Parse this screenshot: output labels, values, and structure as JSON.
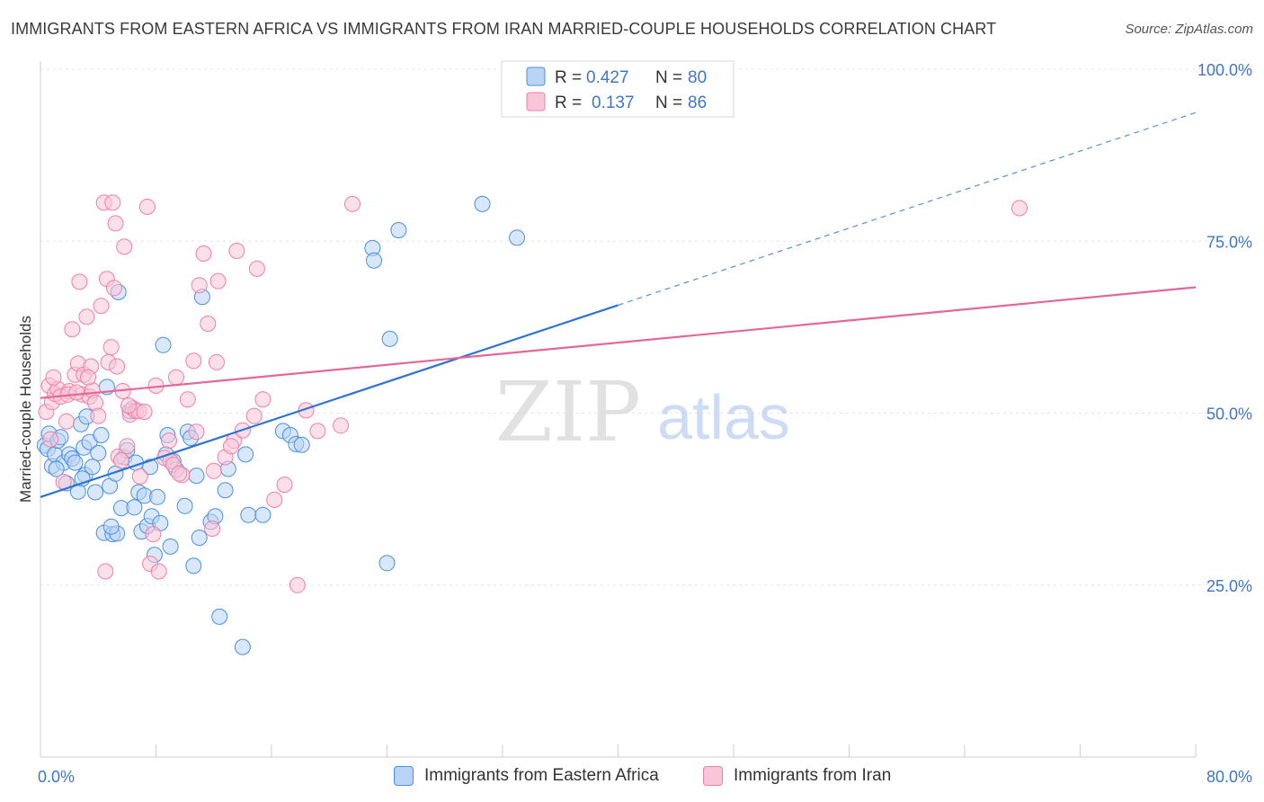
{
  "title": "IMMIGRANTS FROM EASTERN AFRICA VS IMMIGRANTS FROM IRAN MARRIED-COUPLE HOUSEHOLDS CORRELATION CHART",
  "source": "Source: ZipAtlas.com",
  "watermark": {
    "zip": "ZIP",
    "atlas": "atlas"
  },
  "colors": {
    "blue": "#4a8fe0",
    "blue_fill": "#b9d3f5",
    "blue_line": "#2f73d2",
    "pink": "#f07fa6",
    "pink_fill": "#f9c6d7",
    "pink_line": "#e2679a",
    "axis_label": "#3f76c9",
    "grid": "#e4e4e4"
  },
  "legend": {
    "series": [
      {
        "r_label": "R =",
        "r_value": "0.427",
        "n_label": "N =",
        "n_value": "80"
      },
      {
        "r_label": "R =",
        "r_value": "0.137",
        "n_label": "N =",
        "n_value": "86"
      }
    ]
  },
  "chart_data": {
    "type": "scatter",
    "title": "IMMIGRANTS FROM EASTERN AFRICA VS IMMIGRANTS FROM IRAN MARRIED-COUPLE HOUSEHOLDS CORRELATION CHART",
    "xlabel": "",
    "ylabel": "Married-couple Households",
    "xlim": [
      0,
      80
    ],
    "ylim": [
      0,
      102
    ],
    "x_ticks": [
      "0.0%",
      "80.0%"
    ],
    "y_ticks": [
      {
        "value": 25,
        "label": "25.0%"
      },
      {
        "value": 50,
        "label": "50.0%"
      },
      {
        "value": 75,
        "label": "75.0%"
      },
      {
        "value": 100,
        "label": "100.0%"
      }
    ],
    "legend_placement": "top-center",
    "series": [
      {
        "name": "Immigrants from Eastern Africa",
        "color": "#4a8fe0",
        "trend": {
          "x0": 0,
          "y0": 37.8,
          "x1": 40,
          "y1": 65.7,
          "dashed_to_x": 80,
          "dashed_to_y": 93.7
        },
        "points": [
          [
            0.3,
            45.3
          ],
          [
            0.5,
            44.8
          ],
          [
            0.6,
            47
          ],
          [
            0.8,
            42.3
          ],
          [
            1,
            44
          ],
          [
            1.2,
            46
          ],
          [
            1.4,
            46.5
          ],
          [
            1.6,
            42.8
          ],
          [
            1.8,
            39.8
          ],
          [
            2,
            44
          ],
          [
            2.2,
            43.4
          ],
          [
            2.4,
            42.8
          ],
          [
            2.6,
            38.6
          ],
          [
            2.8,
            48.4
          ],
          [
            3,
            45
          ],
          [
            3.1,
            41
          ],
          [
            3.2,
            49.5
          ],
          [
            3.4,
            45.8
          ],
          [
            3.6,
            42.2
          ],
          [
            3.8,
            38.5
          ],
          [
            4,
            44.2
          ],
          [
            4.2,
            46.8
          ],
          [
            4.4,
            32.6
          ],
          [
            4.6,
            53.8
          ],
          [
            4.8,
            39.4
          ],
          [
            5,
            32.4
          ],
          [
            5.2,
            41.2
          ],
          [
            5.3,
            32.5
          ],
          [
            5.4,
            67.6
          ],
          [
            5.6,
            36.2
          ],
          [
            5.8,
            43.6
          ],
          [
            6,
            44.6
          ],
          [
            6.2,
            50.3
          ],
          [
            6.5,
            36.3
          ],
          [
            6.8,
            38.5
          ],
          [
            7,
            32.8
          ],
          [
            7.2,
            38
          ],
          [
            7.4,
            33.6
          ],
          [
            7.6,
            42.2
          ],
          [
            7.7,
            35
          ],
          [
            7.9,
            29.4
          ],
          [
            8.1,
            37.8
          ],
          [
            8.3,
            34
          ],
          [
            8.5,
            59.9
          ],
          [
            8.7,
            44
          ],
          [
            8.8,
            46.8
          ],
          [
            9,
            30.6
          ],
          [
            9.2,
            43
          ],
          [
            9.4,
            41.8
          ],
          [
            10,
            36.5
          ],
          [
            10.2,
            47.3
          ],
          [
            10.4,
            46.4
          ],
          [
            10.6,
            27.8
          ],
          [
            10.8,
            40.9
          ],
          [
            11,
            31.9
          ],
          [
            11.2,
            66.9
          ],
          [
            11.8,
            34.2
          ],
          [
            12.4,
            20.4
          ],
          [
            12.8,
            38.8
          ],
          [
            13,
            41.9
          ],
          [
            14,
            16
          ],
          [
            14.2,
            44
          ],
          [
            14.4,
            35.2
          ],
          [
            15.4,
            35.2
          ],
          [
            16.8,
            47.4
          ],
          [
            17.3,
            46.8
          ],
          [
            17.7,
            45.5
          ],
          [
            18.1,
            45.4
          ],
          [
            23,
            74
          ],
          [
            23.1,
            72.2
          ],
          [
            24,
            28.2
          ],
          [
            24.2,
            60.8
          ],
          [
            24.8,
            76.6
          ],
          [
            30.6,
            80.4
          ],
          [
            33,
            75.5
          ],
          [
            12.1,
            35
          ],
          [
            6.6,
            42.8
          ],
          [
            2.9,
            40.5
          ],
          [
            1.1,
            41.9
          ],
          [
            4.9,
            33.5
          ]
        ]
      },
      {
        "name": "Immigrants from Iran",
        "color": "#f07fa6",
        "trend": {
          "x0": 0,
          "y0": 52.2,
          "x1": 80,
          "y1": 68.3
        },
        "points": [
          [
            0.4,
            50.2
          ],
          [
            0.6,
            54
          ],
          [
            0.8,
            51.6
          ],
          [
            1,
            52.8
          ],
          [
            1.2,
            53.5
          ],
          [
            1.4,
            52.4
          ],
          [
            1.6,
            40
          ],
          [
            1.8,
            48.8
          ],
          [
            2,
            53.2
          ],
          [
            2.2,
            62.2
          ],
          [
            2.4,
            55.6
          ],
          [
            2.6,
            57.2
          ],
          [
            2.7,
            69.1
          ],
          [
            2.9,
            52.7
          ],
          [
            3,
            55.6
          ],
          [
            3.2,
            64
          ],
          [
            3.4,
            52.4
          ],
          [
            3.5,
            56.8
          ],
          [
            3.6,
            53.3
          ],
          [
            3.8,
            51.5
          ],
          [
            4,
            49.6
          ],
          [
            4.2,
            65.6
          ],
          [
            4.4,
            80.6
          ],
          [
            4.5,
            27
          ],
          [
            4.6,
            69.5
          ],
          [
            4.7,
            57.4
          ],
          [
            4.9,
            59.6
          ],
          [
            5,
            80.6
          ],
          [
            5.1,
            68.2
          ],
          [
            5.2,
            77.6
          ],
          [
            5.3,
            56.8
          ],
          [
            5.4,
            43.7
          ],
          [
            5.6,
            43.1
          ],
          [
            5.8,
            74.2
          ],
          [
            6,
            45.2
          ],
          [
            6.2,
            49.8
          ],
          [
            6.4,
            50.7
          ],
          [
            6.6,
            50.3
          ],
          [
            6.8,
            50.3
          ],
          [
            7.2,
            50.2
          ],
          [
            7.4,
            80
          ],
          [
            7.6,
            28.1
          ],
          [
            7.8,
            32.4
          ],
          [
            8,
            54
          ],
          [
            8.2,
            27
          ],
          [
            8.6,
            43.5
          ],
          [
            9,
            43
          ],
          [
            9.2,
            42.5
          ],
          [
            9.4,
            55.2
          ],
          [
            9.8,
            41
          ],
          [
            10.2,
            52
          ],
          [
            10.6,
            57.6
          ],
          [
            10.8,
            47.3
          ],
          [
            11,
            68.6
          ],
          [
            11.3,
            73.2
          ],
          [
            11.6,
            63
          ],
          [
            12,
            41.6
          ],
          [
            12.2,
            57.4
          ],
          [
            12.3,
            69.2
          ],
          [
            12.8,
            43.6
          ],
          [
            13.4,
            46
          ],
          [
            13.6,
            73.6
          ],
          [
            14,
            47.5
          ],
          [
            14.8,
            49.6
          ],
          [
            15,
            71
          ],
          [
            15.4,
            52
          ],
          [
            16.2,
            37.4
          ],
          [
            16.9,
            39.6
          ],
          [
            17.8,
            25
          ],
          [
            18.4,
            50.4
          ],
          [
            19.2,
            47.4
          ],
          [
            20.8,
            48.2
          ],
          [
            21.6,
            80.4
          ],
          [
            67.8,
            79.8
          ],
          [
            1.9,
            52.7
          ],
          [
            0.7,
            46.2
          ],
          [
            2.5,
            53
          ],
          [
            3.3,
            55.2
          ],
          [
            5.7,
            53.2
          ],
          [
            6.1,
            51.1
          ],
          [
            9.6,
            41.2
          ],
          [
            11.9,
            33.2
          ],
          [
            13.2,
            45.2
          ],
          [
            6.9,
            40.8
          ],
          [
            8.9,
            46
          ],
          [
            0.9,
            55.2
          ]
        ]
      }
    ]
  }
}
